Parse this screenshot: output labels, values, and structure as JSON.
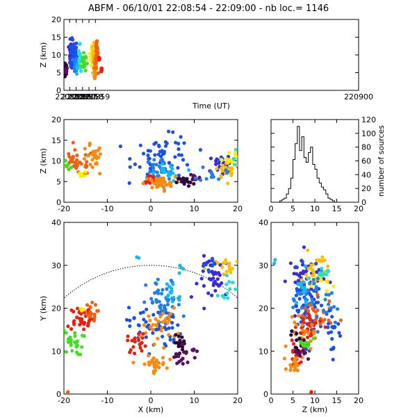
{
  "title": "ABFM - 06/10/01 22:08:54 - 22:09:00 - nb loc.=   1146",
  "colors": [
    "#2a0a3a",
    "#5a1060",
    "#3a2ad8",
    "#1a50e8",
    "#2080e8",
    "#18b8ee",
    "#20e0d8",
    "#20d060",
    "#40e020",
    "#f8f000",
    "#f8c000",
    "#f88a10",
    "#f06010",
    "#e82010"
  ],
  "chart_data": [
    {
      "name": "time-height",
      "type": "scatter",
      "xlabel": "Time (UT)",
      "ylabel": "Z (km)",
      "xlim": [
        220854.1,
        220900
      ],
      "ylim": [
        0,
        20
      ],
      "xticks": [
        "220855",
        "220856",
        "220857",
        "220858",
        "220859",
        "220900"
      ],
      "xtick_values": [
        220855,
        220856,
        220857,
        220858,
        220859,
        220900
      ],
      "yticks": [
        0,
        5,
        10,
        15,
        20
      ],
      "clusters": [
        {
          "cx": 220854.3,
          "cy": 6,
          "sx": 0.15,
          "sy": 0.8,
          "n": 40,
          "color": "#2a0a3a"
        },
        {
          "cx": 220854.5,
          "cy": 5.5,
          "sx": 0.05,
          "sy": 0.5,
          "n": 8,
          "color": "#5a1060"
        },
        {
          "cx": 220855.2,
          "cy": 10,
          "sx": 0.18,
          "sy": 1.8,
          "n": 45,
          "color": "#3a2ad8"
        },
        {
          "cx": 220855.65,
          "cy": 10,
          "sx": 0.25,
          "sy": 2.2,
          "n": 70,
          "color": "#1a50e8"
        },
        {
          "cx": 220855.9,
          "cy": 7.5,
          "sx": 0.12,
          "sy": 1,
          "n": 25,
          "color": "#2080e8"
        },
        {
          "cx": 220856.2,
          "cy": 6.5,
          "sx": 0.08,
          "sy": 0.8,
          "n": 6,
          "color": "#18b8ee"
        },
        {
          "cx": 220856.55,
          "cy": 9,
          "sx": 0.08,
          "sy": 1.8,
          "n": 12,
          "color": "#20e0d8"
        },
        {
          "cx": 220857.15,
          "cy": 8,
          "sx": 0.2,
          "sy": 1.5,
          "n": 30,
          "color": "#40e020"
        },
        {
          "cx": 220858.5,
          "cy": 10,
          "sx": 0.12,
          "sy": 1.5,
          "n": 25,
          "color": "#f8f000"
        },
        {
          "cx": 220858.7,
          "cy": 10,
          "sx": 0.1,
          "sy": 1.5,
          "n": 15,
          "color": "#f8c000"
        },
        {
          "cx": 220858.95,
          "cy": 6.5,
          "sx": 0.12,
          "sy": 1.2,
          "n": 35,
          "color": "#f88a10"
        },
        {
          "cx": 220859.2,
          "cy": 10,
          "sx": 0.12,
          "sy": 2,
          "n": 30,
          "color": "#f06010"
        },
        {
          "cx": 220859.6,
          "cy": 9,
          "sx": 0.05,
          "sy": 0.4,
          "n": 6,
          "color": "#e82010"
        },
        {
          "cx": 220859.95,
          "cy": 6,
          "sx": 0.05,
          "sy": 0.6,
          "n": 10,
          "color": "#e82010"
        }
      ]
    },
    {
      "name": "x-height",
      "type": "scatter",
      "xlabel": "",
      "ylabel": "Z (km)",
      "xlim": [
        -20,
        20
      ],
      "ylim": [
        0,
        20
      ],
      "xticks": [
        -20,
        -10,
        0,
        10,
        20
      ],
      "yticks": [
        0,
        5,
        10,
        15,
        20
      ],
      "clusters": [
        {
          "cx": -17,
          "cy": 9.5,
          "sx": 2,
          "sy": 1.5,
          "n": 35,
          "color": "#f06010"
        },
        {
          "cx": -13.5,
          "cy": 10,
          "sx": 1.2,
          "sy": 2,
          "n": 25,
          "color": "#f88a10"
        },
        {
          "cx": -19,
          "cy": 9,
          "sx": 0.8,
          "sy": 0.6,
          "n": 8,
          "color": "#40e020"
        },
        {
          "cx": -16,
          "cy": 6.5,
          "sx": 0.6,
          "sy": 0.6,
          "n": 6,
          "color": "#f8f000"
        },
        {
          "cx": 3,
          "cy": 11,
          "sx": 3.5,
          "sy": 2.5,
          "n": 60,
          "color": "#1a50e8"
        },
        {
          "cx": 2,
          "cy": 8,
          "sx": 2,
          "sy": 1.5,
          "n": 30,
          "color": "#2080e8"
        },
        {
          "cx": 4,
          "cy": 7,
          "sx": 1.5,
          "sy": 1,
          "n": 20,
          "color": "#18b8ee"
        },
        {
          "cx": 0,
          "cy": 5.5,
          "sx": 1,
          "sy": 0.5,
          "n": 18,
          "color": "#e82010"
        },
        {
          "cx": 2,
          "cy": 4.5,
          "sx": 1.8,
          "sy": 0.8,
          "n": 35,
          "color": "#f88a10"
        },
        {
          "cx": 8,
          "cy": 5,
          "sx": 1,
          "sy": 0.6,
          "n": 20,
          "color": "#2a0a3a"
        },
        {
          "cx": 10,
          "cy": 6,
          "sx": 0.7,
          "sy": 0.8,
          "n": 10,
          "color": "#5a1060"
        },
        {
          "cx": 17,
          "cy": 9,
          "sx": 2,
          "sy": 1.5,
          "n": 30,
          "color": "#3a2ad8"
        },
        {
          "cx": 18,
          "cy": 8,
          "sx": 1.5,
          "sy": 1.2,
          "n": 25,
          "color": "#f8c000"
        },
        {
          "cx": 19,
          "cy": 10,
          "sx": 1,
          "sy": 1.5,
          "n": 12,
          "color": "#20e0d8"
        },
        {
          "cx": 18.5,
          "cy": 11,
          "sx": 1,
          "sy": 1.2,
          "n": 10,
          "color": "#f8f000"
        },
        {
          "cx": 14,
          "cy": 7,
          "sx": 1.5,
          "sy": 1,
          "n": 12,
          "color": "#2080e8"
        }
      ]
    },
    {
      "name": "histogram",
      "type": "bar",
      "xlabel": "",
      "ylabel": "number of sources",
      "xlim": [
        0,
        20
      ],
      "ylim": [
        0,
        120
      ],
      "xticks": [
        0,
        5,
        10,
        15,
        20
      ],
      "yticks": [
        0,
        20,
        40,
        60,
        80,
        100,
        120
      ],
      "bin_start": 2,
      "bin_width": 0.5,
      "values": [
        2,
        4,
        6,
        12,
        20,
        35,
        62,
        85,
        110,
        75,
        95,
        65,
        58,
        72,
        80,
        55,
        48,
        35,
        28,
        22,
        18,
        12,
        6,
        4,
        2
      ]
    },
    {
      "name": "plan-view",
      "type": "scatter",
      "xlabel": "X (km)",
      "ylabel": "Y (km)",
      "xlim": [
        -20,
        20
      ],
      "ylim": [
        0,
        40
      ],
      "xticks": [
        -20,
        -10,
        0,
        10,
        20
      ],
      "yticks": [
        0,
        10,
        20,
        30,
        40
      ],
      "arc": {
        "radius": 30,
        "center": [
          0,
          0
        ]
      },
      "clusters": [
        {
          "cx": -16,
          "cy": 18,
          "sx": 1.6,
          "sy": 1.5,
          "n": 40,
          "color": "#e82010"
        },
        {
          "cx": -14,
          "cy": 19,
          "sx": 0.8,
          "sy": 1,
          "n": 15,
          "color": "#f06010"
        },
        {
          "cx": -16,
          "cy": 19.5,
          "sx": 0.4,
          "sy": 0.4,
          "n": 5,
          "color": "#f8f000"
        },
        {
          "cx": -18,
          "cy": 12,
          "sx": 1.2,
          "sy": 1.5,
          "n": 25,
          "color": "#40e020"
        },
        {
          "cx": 1,
          "cy": 16,
          "sx": 3,
          "sy": 3,
          "n": 60,
          "color": "#1a50e8"
        },
        {
          "cx": 3,
          "cy": 21,
          "sx": 2,
          "sy": 3,
          "n": 40,
          "color": "#2080e8"
        },
        {
          "cx": 5,
          "cy": 24,
          "sx": 1.2,
          "sy": 1.5,
          "n": 15,
          "color": "#18b8ee"
        },
        {
          "cx": 2,
          "cy": 16,
          "sx": 2,
          "sy": 2,
          "n": 30,
          "color": "#f88a10"
        },
        {
          "cx": -3,
          "cy": 12,
          "sx": 1.2,
          "sy": 1.2,
          "n": 20,
          "color": "#e82010"
        },
        {
          "cx": 0.5,
          "cy": 7,
          "sx": 1.5,
          "sy": 0.9,
          "n": 30,
          "color": "#f88a10"
        },
        {
          "cx": 7,
          "cy": 12,
          "sx": 0.8,
          "sy": 0.8,
          "n": 20,
          "color": "#2a0a3a"
        },
        {
          "cx": 6,
          "cy": 8,
          "sx": 0.8,
          "sy": 0.8,
          "n": 10,
          "color": "#5a1060"
        },
        {
          "cx": 9,
          "cy": 10,
          "sx": 1,
          "sy": 1,
          "n": 10,
          "color": "#5a1060"
        },
        {
          "cx": 15,
          "cy": 27,
          "sx": 2,
          "sy": 2.5,
          "n": 40,
          "color": "#3a2ad8"
        },
        {
          "cx": 18,
          "cy": 29,
          "sx": 1.5,
          "sy": 1.5,
          "n": 20,
          "color": "#f8c000"
        },
        {
          "cx": 18,
          "cy": 25,
          "sx": 1.2,
          "sy": 1.2,
          "n": 12,
          "color": "#20e0d8"
        },
        {
          "cx": 13,
          "cy": 30,
          "sx": 1,
          "sy": 1,
          "n": 8,
          "color": "#1a50e8"
        },
        {
          "cx": 7,
          "cy": 29,
          "sx": 0.5,
          "sy": 0.5,
          "n": 4,
          "color": "#18b8ee"
        },
        {
          "cx": -3,
          "cy": 32,
          "sx": 0.3,
          "sy": 0.3,
          "n": 2,
          "color": "#18b8ee"
        },
        {
          "cx": -19,
          "cy": 0.2,
          "sx": 0.3,
          "sy": 0.2,
          "n": 2,
          "color": "#f06010"
        }
      ]
    },
    {
      "name": "z-y",
      "type": "scatter",
      "xlabel": "Z (km)",
      "ylabel": "",
      "xlim": [
        0,
        20
      ],
      "ylim": [
        0,
        40
      ],
      "xticks": [
        0,
        5,
        10,
        15,
        20
      ],
      "yticks": [
        0,
        10,
        20,
        30,
        40
      ],
      "clusters": [
        {
          "cx": 8,
          "cy": 27,
          "sx": 2,
          "sy": 3,
          "n": 50,
          "color": "#3a2ad8"
        },
        {
          "cx": 10,
          "cy": 29,
          "sx": 1.5,
          "sy": 2,
          "n": 25,
          "color": "#f8c000"
        },
        {
          "cx": 11,
          "cy": 26,
          "sx": 1.2,
          "sy": 1.2,
          "n": 15,
          "color": "#f8f000"
        },
        {
          "cx": 8,
          "cy": 20,
          "sx": 2,
          "sy": 4,
          "n": 50,
          "color": "#1a50e8"
        },
        {
          "cx": 9,
          "cy": 22,
          "sx": 1.5,
          "sy": 3,
          "n": 30,
          "color": "#2080e8"
        },
        {
          "cx": 7,
          "cy": 24,
          "sx": 1,
          "sy": 2,
          "n": 15,
          "color": "#18b8ee"
        },
        {
          "cx": 10,
          "cy": 18,
          "sx": 2,
          "sy": 2,
          "n": 30,
          "color": "#f06010"
        },
        {
          "cx": 9,
          "cy": 16,
          "sx": 1.5,
          "sy": 2,
          "n": 25,
          "color": "#e82010"
        },
        {
          "cx": 7,
          "cy": 13,
          "sx": 1.5,
          "sy": 2,
          "n": 25,
          "color": "#f88a10"
        },
        {
          "cx": 6,
          "cy": 10,
          "sx": 1,
          "sy": 1.5,
          "n": 20,
          "color": "#e82010"
        },
        {
          "cx": 5.5,
          "cy": 7,
          "sx": 0.8,
          "sy": 1,
          "n": 15,
          "color": "#f88a10"
        },
        {
          "cx": 6,
          "cy": 12,
          "sx": 0.8,
          "sy": 1.5,
          "n": 15,
          "color": "#2a0a3a"
        },
        {
          "cx": 7,
          "cy": 10,
          "sx": 0.8,
          "sy": 1,
          "n": 10,
          "color": "#5a1060"
        },
        {
          "cx": 8,
          "cy": 12,
          "sx": 0.8,
          "sy": 0.8,
          "n": 10,
          "color": "#40e020"
        },
        {
          "cx": 14,
          "cy": 15,
          "sx": 1.2,
          "sy": 3,
          "n": 20,
          "color": "#1a50e8"
        },
        {
          "cx": 13,
          "cy": 21,
          "sx": 1,
          "sy": 2,
          "n": 12,
          "color": "#2080e8"
        },
        {
          "cx": 11,
          "cy": 27,
          "sx": 1,
          "sy": 1.5,
          "n": 10,
          "color": "#20e0d8"
        },
        {
          "cx": 1,
          "cy": 31,
          "sx": 0.3,
          "sy": 0.3,
          "n": 2,
          "color": "#18b8ee"
        },
        {
          "cx": 9,
          "cy": 0.3,
          "sx": 0.3,
          "sy": 0.2,
          "n": 2,
          "color": "#e82010"
        }
      ]
    }
  ]
}
